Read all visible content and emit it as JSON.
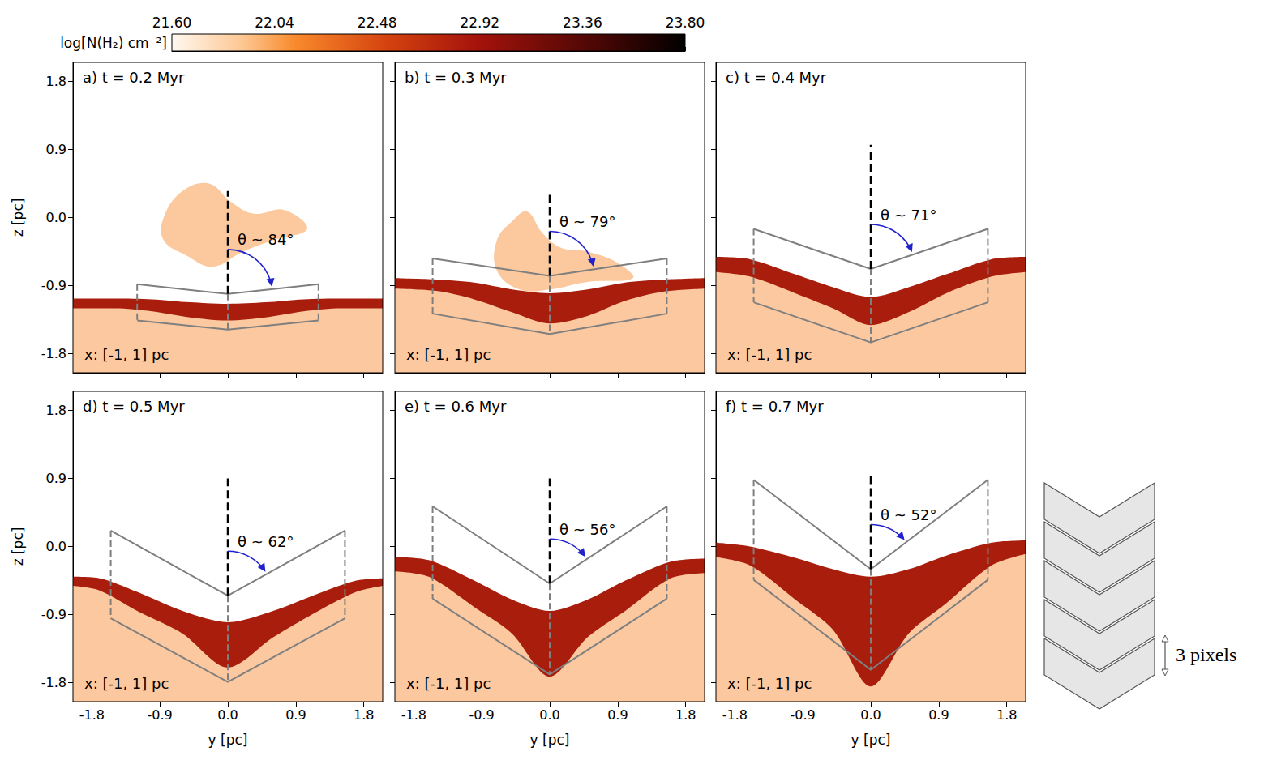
{
  "colorbar": {
    "label": "log[N(H₂) cm⁻²]",
    "lim": [
      21.6,
      23.8
    ],
    "ticks": [
      {
        "value": 21.6,
        "label": "21.60"
      },
      {
        "value": 22.04,
        "label": "22.04"
      },
      {
        "value": 22.48,
        "label": "22.48"
      },
      {
        "value": 22.92,
        "label": "22.92"
      },
      {
        "value": 23.36,
        "label": "23.36"
      },
      {
        "value": 23.8,
        "label": "23.80"
      }
    ]
  },
  "chart_data": [
    {
      "type": "line",
      "title": "a) t = 0.2 Myr",
      "note": "x: [-1, 1] pc",
      "ylabel": "z [pc]",
      "xlim": [
        -2.05,
        2.05
      ],
      "ylim": [
        -2.05,
        2.05
      ],
      "xticks": [
        -1.8,
        -0.9,
        {
          "value": 0,
          "label": "0.0"
        },
        0.9,
        1.8
      ],
      "yticks": [
        1.8,
        0.9,
        {
          "value": 0,
          "label": "0.0"
        },
        -0.9,
        -1.8
      ],
      "tick_labels": "y",
      "angle_label": "θ ~ 84°",
      "layer": {
        "y": [
          -2.05,
          -1.5,
          -1.0,
          -0.5,
          0,
          0.5,
          1.0,
          1.5,
          2.05
        ],
        "top": [
          -1.07,
          -1.07,
          -1.08,
          -1.12,
          -1.14,
          -1.12,
          -1.08,
          -1.07,
          -1.07
        ],
        "bottom": [
          -1.2,
          -1.2,
          -1.24,
          -1.32,
          -1.36,
          -1.32,
          -1.24,
          -1.2,
          -1.2
        ]
      },
      "cloud": {
        "y": [
          -0.85,
          -0.6,
          -0.25,
          0.05,
          0.35,
          0.75,
          1.05,
          0.6,
          0.2,
          -0.2,
          -0.55,
          -0.85
        ],
        "z": [
          0.0,
          0.35,
          0.45,
          0.2,
          0.05,
          0.1,
          -0.15,
          -0.3,
          -0.45,
          -0.65,
          -0.5,
          -0.3
        ]
      },
      "chevron": {
        "y": [
          -1.2,
          0,
          1.2
        ],
        "top": [
          -0.88,
          -1.01,
          -0.88
        ],
        "bottom": [
          -1.36,
          -1.48,
          -1.36
        ]
      },
      "center_line_top": 0.35
    },
    {
      "type": "line",
      "title": "b) t = 0.3 Myr",
      "note": "x: [-1, 1] pc",
      "xlim": [
        -2.05,
        2.05
      ],
      "ylim": [
        -2.05,
        2.05
      ],
      "xticks": [
        -1.8,
        -0.9,
        {
          "value": 0,
          "label": "0.0"
        },
        0.9,
        1.8
      ],
      "yticks": [
        1.8,
        0.9,
        {
          "value": 0,
          "label": "0.0"
        },
        -0.9,
        -1.8
      ],
      "tick_labels": false,
      "angle_label": "θ ~ 79°",
      "layer": {
        "y": [
          -2.05,
          -1.5,
          -1.0,
          -0.5,
          0,
          0.5,
          1.0,
          1.5,
          2.05
        ],
        "top": [
          -0.8,
          -0.82,
          -0.86,
          -0.95,
          -1.0,
          -0.95,
          -0.86,
          -0.82,
          -0.8
        ],
        "bottom": [
          -0.94,
          -0.97,
          -1.08,
          -1.25,
          -1.4,
          -1.3,
          -1.1,
          -0.98,
          -0.94
        ]
      },
      "cloud": {
        "y": [
          -0.7,
          -0.5,
          -0.3,
          -0.1,
          0.15,
          0.5,
          0.9,
          1.1,
          0.5,
          0.0,
          -0.4,
          -0.7
        ],
        "z": [
          -0.3,
          -0.05,
          0.08,
          -0.2,
          -0.4,
          -0.45,
          -0.6,
          -0.8,
          -0.85,
          -0.95,
          -0.95,
          -0.7
        ]
      },
      "chevron": {
        "y": [
          -1.55,
          0,
          1.55
        ],
        "top": [
          -0.54,
          -0.77,
          -0.54
        ],
        "bottom": [
          -1.27,
          -1.54,
          -1.27
        ]
      },
      "center_line_top": 0.35
    },
    {
      "type": "line",
      "title": "c) t = 0.4 Myr",
      "note": "x: [-1, 1] pc",
      "xlim": [
        -2.05,
        2.05
      ],
      "ylim": [
        -2.05,
        2.05
      ],
      "xticks": [
        -1.8,
        -0.9,
        {
          "value": 0,
          "label": "0.0"
        },
        0.9,
        1.8
      ],
      "yticks": [
        1.8,
        0.9,
        {
          "value": 0,
          "label": "0.0"
        },
        -0.9,
        -1.8
      ],
      "tick_labels": false,
      "angle_label": "θ ~ 71°",
      "layer": {
        "y": [
          -2.05,
          -1.6,
          -1.0,
          -0.5,
          0,
          0.5,
          1.0,
          1.6,
          2.05
        ],
        "top": [
          -0.52,
          -0.55,
          -0.75,
          -0.92,
          -1.05,
          -0.92,
          -0.75,
          -0.55,
          -0.52
        ],
        "bottom": [
          -0.72,
          -0.78,
          -1.0,
          -1.2,
          -1.42,
          -1.25,
          -1.0,
          -0.78,
          -0.72
        ]
      },
      "chevron": {
        "y": [
          -1.55,
          0,
          1.55
        ],
        "top": [
          -0.15,
          -0.68,
          -0.15
        ],
        "bottom": [
          -1.12,
          -1.65,
          -1.12
        ]
      },
      "center_line_top": 0.96
    },
    {
      "type": "line",
      "title": "d) t = 0.5 Myr",
      "note": "x: [-1, 1] pc",
      "xlabel": "y [pc]",
      "ylabel": "z [pc]",
      "xlim": [
        -2.05,
        2.05
      ],
      "ylim": [
        -2.05,
        2.05
      ],
      "xticks": [
        -1.8,
        -0.9,
        {
          "value": 0,
          "label": "0.0"
        },
        0.9,
        1.8
      ],
      "yticks": [
        1.8,
        0.9,
        {
          "value": 0,
          "label": "0.0"
        },
        -0.9,
        -1.8
      ],
      "tick_labels": true,
      "angle_label": "θ ~ 62°",
      "layer": {
        "y": [
          -2.05,
          -1.7,
          -1.2,
          -0.6,
          0,
          0.6,
          1.2,
          1.7,
          2.05
        ],
        "top": [
          -0.4,
          -0.42,
          -0.6,
          -0.85,
          -1.0,
          -0.85,
          -0.62,
          -0.45,
          -0.42
        ],
        "bottom": [
          -0.52,
          -0.58,
          -0.85,
          -1.15,
          -1.6,
          -1.2,
          -0.85,
          -0.6,
          -0.52
        ]
      },
      "chevron": {
        "y": [
          -1.55,
          0,
          1.55
        ],
        "top": [
          0.21,
          -0.65,
          0.21
        ],
        "bottom": [
          -0.95,
          -1.79,
          -0.95
        ]
      },
      "center_line_top": 0.9
    },
    {
      "type": "line",
      "title": "e) t = 0.6 Myr",
      "note": "x: [-1, 1] pc",
      "xlabel": "y [pc]",
      "xlim": [
        -2.05,
        2.05
      ],
      "ylim": [
        -2.05,
        2.05
      ],
      "xticks": [
        -1.8,
        -0.9,
        {
          "value": 0,
          "label": "0.0"
        },
        0.9,
        1.8
      ],
      "yticks": [
        1.8,
        0.9,
        {
          "value": 0,
          "label": "0.0"
        },
        -0.9,
        -1.8
      ],
      "tick_labels": "x",
      "angle_label": "θ ~ 56°",
      "layer": {
        "y": [
          -2.05,
          -1.6,
          -1.0,
          -0.5,
          0,
          0.5,
          1.0,
          1.6,
          2.05
        ],
        "top": [
          -0.14,
          -0.18,
          -0.45,
          -0.7,
          -0.85,
          -0.7,
          -0.45,
          -0.2,
          -0.16
        ],
        "bottom": [
          -0.33,
          -0.4,
          -0.8,
          -1.15,
          -1.72,
          -1.2,
          -0.85,
          -0.42,
          -0.35
        ]
      },
      "chevron": {
        "y": [
          -1.55,
          0,
          1.55
        ],
        "top": [
          0.53,
          -0.49,
          0.53
        ],
        "bottom": [
          -0.69,
          -1.69,
          -0.69
        ]
      },
      "center_line_top": 0.9
    },
    {
      "type": "line",
      "title": "f) t = 0.7 Myr",
      "note": "x: [-1, 1] pc",
      "xlabel": "y [pc]",
      "xlim": [
        -2.05,
        2.05
      ],
      "ylim": [
        -2.05,
        2.05
      ],
      "xticks": [
        -1.8,
        -0.9,
        {
          "value": 0,
          "label": "0.0"
        },
        0.9,
        1.8
      ],
      "yticks": [
        1.8,
        0.9,
        {
          "value": 0,
          "label": "0.0"
        },
        -0.9,
        -1.8
      ],
      "tick_labels": "x",
      "angle_label": "θ ~ 52°",
      "layer": {
        "y": [
          -2.05,
          -1.6,
          -1.0,
          -0.5,
          0,
          0.5,
          1.0,
          1.6,
          2.05
        ],
        "top": [
          0.05,
          0.0,
          -0.15,
          -0.3,
          -0.4,
          -0.3,
          -0.12,
          0.05,
          0.08
        ],
        "bottom": [
          -0.14,
          -0.25,
          -0.7,
          -1.1,
          -1.85,
          -1.15,
          -0.75,
          -0.25,
          -0.1
        ]
      },
      "chevron": {
        "y": [
          -1.55,
          0,
          1.55
        ],
        "top": [
          0.88,
          -0.3,
          0.88
        ],
        "bottom": [
          -0.44,
          -1.63,
          -0.44
        ]
      },
      "center_line_top": 0.95
    }
  ],
  "diagram": {
    "label": "3 pixels"
  }
}
